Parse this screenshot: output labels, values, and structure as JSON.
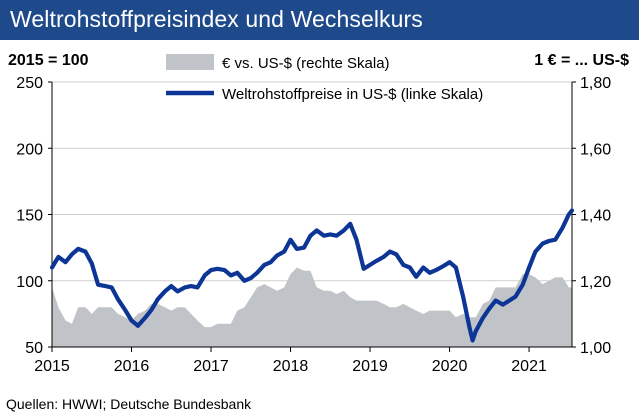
{
  "header": {
    "title": "Weltrohstoffpreisindex und Wechselkurs"
  },
  "footer": {
    "source": "Quellen: HWWI; Deutsche Bundesbank"
  },
  "colors": {
    "title_bg": "#1e4a8c",
    "line": "#0d3596",
    "area": "#c0c4c8"
  },
  "chart_data": {
    "type": "line",
    "title": "Weltrohstoffpreisindex und Wechselkurs",
    "left_axis": {
      "unit_label": "2015 = 100",
      "ticks": [
        "250",
        "200",
        "150",
        "100",
        "50"
      ],
      "range": [
        50,
        250
      ]
    },
    "right_axis": {
      "unit_label": "1 € = ... US-$",
      "ticks": [
        "1,80",
        "1,60",
        "1,40",
        "1,20",
        "1,00"
      ],
      "range": [
        1.0,
        1.8
      ]
    },
    "x_axis": {
      "ticks": [
        "2015",
        "2016",
        "2017",
        "2018",
        "2019",
        "2020",
        "2021"
      ],
      "range": [
        2015.0,
        2021.54
      ]
    },
    "legend": [
      "€ vs. US-$ (rechte Skala)",
      "Weltrohstoffpreise in US-$ (linke Skala)"
    ],
    "series": [
      {
        "name": "Weltrohstoffpreise in US-$ (linke Skala)",
        "axis": "left",
        "style": "line",
        "points": [
          [
            2015.0,
            110
          ],
          [
            2015.08,
            118
          ],
          [
            2015.17,
            114
          ],
          [
            2015.25,
            120
          ],
          [
            2015.33,
            124
          ],
          [
            2015.42,
            122
          ],
          [
            2015.5,
            113
          ],
          [
            2015.58,
            97
          ],
          [
            2015.67,
            96
          ],
          [
            2015.75,
            95
          ],
          [
            2015.83,
            86
          ],
          [
            2015.92,
            78
          ],
          [
            2016.0,
            70
          ],
          [
            2016.08,
            66
          ],
          [
            2016.17,
            72
          ],
          [
            2016.25,
            78
          ],
          [
            2016.33,
            86
          ],
          [
            2016.42,
            92
          ],
          [
            2016.5,
            96
          ],
          [
            2016.58,
            92
          ],
          [
            2016.67,
            95
          ],
          [
            2016.75,
            96
          ],
          [
            2016.83,
            95
          ],
          [
            2016.92,
            104
          ],
          [
            2017.0,
            108
          ],
          [
            2017.08,
            109
          ],
          [
            2017.17,
            108
          ],
          [
            2017.25,
            104
          ],
          [
            2017.33,
            106
          ],
          [
            2017.42,
            100
          ],
          [
            2017.5,
            102
          ],
          [
            2017.58,
            106
          ],
          [
            2017.67,
            112
          ],
          [
            2017.75,
            114
          ],
          [
            2017.83,
            119
          ],
          [
            2017.92,
            122
          ],
          [
            2018.0,
            131
          ],
          [
            2018.08,
            124
          ],
          [
            2018.17,
            125
          ],
          [
            2018.25,
            134
          ],
          [
            2018.33,
            138
          ],
          [
            2018.42,
            134
          ],
          [
            2018.5,
            135
          ],
          [
            2018.58,
            134
          ],
          [
            2018.67,
            138
          ],
          [
            2018.75,
            143
          ],
          [
            2018.83,
            131
          ],
          [
            2018.92,
            109
          ],
          [
            2019.0,
            112
          ],
          [
            2019.08,
            115
          ],
          [
            2019.17,
            118
          ],
          [
            2019.25,
            122
          ],
          [
            2019.33,
            120
          ],
          [
            2019.42,
            112
          ],
          [
            2019.5,
            110
          ],
          [
            2019.58,
            103
          ],
          [
            2019.67,
            110
          ],
          [
            2019.75,
            106
          ],
          [
            2019.83,
            108
          ],
          [
            2019.92,
            111
          ],
          [
            2020.0,
            114
          ],
          [
            2020.08,
            110
          ],
          [
            2020.17,
            88
          ],
          [
            2020.25,
            65
          ],
          [
            2020.29,
            55
          ],
          [
            2020.33,
            62
          ],
          [
            2020.42,
            72
          ],
          [
            2020.5,
            79
          ],
          [
            2020.58,
            85
          ],
          [
            2020.67,
            82
          ],
          [
            2020.75,
            85
          ],
          [
            2020.83,
            88
          ],
          [
            2020.92,
            97
          ],
          [
            2021.0,
            110
          ],
          [
            2021.08,
            122
          ],
          [
            2021.17,
            128
          ],
          [
            2021.25,
            130
          ],
          [
            2021.33,
            131
          ],
          [
            2021.42,
            140
          ],
          [
            2021.5,
            150
          ],
          [
            2021.54,
            153
          ]
        ]
      },
      {
        "name": "€ vs. US-$ (rechte Skala)",
        "axis": "right",
        "style": "area",
        "points": [
          [
            2015.0,
            1.18
          ],
          [
            2015.08,
            1.12
          ],
          [
            2015.17,
            1.08
          ],
          [
            2015.25,
            1.07
          ],
          [
            2015.33,
            1.12
          ],
          [
            2015.42,
            1.12
          ],
          [
            2015.5,
            1.1
          ],
          [
            2015.58,
            1.12
          ],
          [
            2015.67,
            1.12
          ],
          [
            2015.75,
            1.12
          ],
          [
            2015.83,
            1.1
          ],
          [
            2015.92,
            1.09
          ],
          [
            2016.0,
            1.08
          ],
          [
            2016.08,
            1.1
          ],
          [
            2016.17,
            1.11
          ],
          [
            2016.25,
            1.13
          ],
          [
            2016.33,
            1.13
          ],
          [
            2016.42,
            1.12
          ],
          [
            2016.5,
            1.11
          ],
          [
            2016.58,
            1.12
          ],
          [
            2016.67,
            1.12
          ],
          [
            2016.75,
            1.1
          ],
          [
            2016.83,
            1.08
          ],
          [
            2016.92,
            1.06
          ],
          [
            2017.0,
            1.06
          ],
          [
            2017.08,
            1.07
          ],
          [
            2017.17,
            1.07
          ],
          [
            2017.25,
            1.07
          ],
          [
            2017.33,
            1.11
          ],
          [
            2017.42,
            1.12
          ],
          [
            2017.5,
            1.15
          ],
          [
            2017.58,
            1.18
          ],
          [
            2017.67,
            1.19
          ],
          [
            2017.75,
            1.18
          ],
          [
            2017.83,
            1.17
          ],
          [
            2017.92,
            1.18
          ],
          [
            2018.0,
            1.22
          ],
          [
            2018.08,
            1.24
          ],
          [
            2018.17,
            1.23
          ],
          [
            2018.25,
            1.23
          ],
          [
            2018.33,
            1.18
          ],
          [
            2018.42,
            1.17
          ],
          [
            2018.5,
            1.17
          ],
          [
            2018.58,
            1.16
          ],
          [
            2018.67,
            1.17
          ],
          [
            2018.75,
            1.15
          ],
          [
            2018.83,
            1.14
          ],
          [
            2018.92,
            1.14
          ],
          [
            2019.0,
            1.14
          ],
          [
            2019.08,
            1.14
          ],
          [
            2019.17,
            1.13
          ],
          [
            2019.25,
            1.12
          ],
          [
            2019.33,
            1.12
          ],
          [
            2019.42,
            1.13
          ],
          [
            2019.5,
            1.12
          ],
          [
            2019.58,
            1.11
          ],
          [
            2019.67,
            1.1
          ],
          [
            2019.75,
            1.11
          ],
          [
            2019.83,
            1.11
          ],
          [
            2019.92,
            1.11
          ],
          [
            2020.0,
            1.11
          ],
          [
            2020.08,
            1.09
          ],
          [
            2020.17,
            1.1
          ],
          [
            2020.25,
            1.09
          ],
          [
            2020.33,
            1.09
          ],
          [
            2020.42,
            1.13
          ],
          [
            2020.5,
            1.14
          ],
          [
            2020.58,
            1.18
          ],
          [
            2020.67,
            1.18
          ],
          [
            2020.75,
            1.18
          ],
          [
            2020.83,
            1.18
          ],
          [
            2020.92,
            1.22
          ],
          [
            2021.0,
            1.22
          ],
          [
            2021.08,
            1.21
          ],
          [
            2021.17,
            1.19
          ],
          [
            2021.25,
            1.2
          ],
          [
            2021.33,
            1.21
          ],
          [
            2021.42,
            1.21
          ],
          [
            2021.5,
            1.18
          ],
          [
            2021.54,
            1.18
          ]
        ]
      }
    ]
  }
}
